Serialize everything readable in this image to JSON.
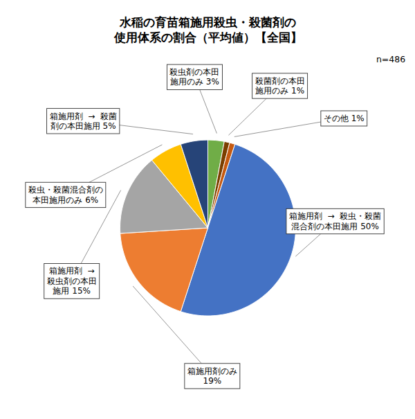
{
  "chart_data": {
    "type": "pie",
    "title": "水稲の育苗箱施用殺虫・殺菌剤の\n使用体系の割合（平均値）【全国】",
    "annotations": [
      "n=486"
    ],
    "categories": [
      "殺虫剤の本田\n施用のみ 3%",
      "殺菌剤の本田\n施用のみ 1%",
      "その他 1%",
      "箱施用剤  →  殺虫・殺菌\n混合剤の本田施用 50%",
      "箱施用剤のみ\n19%",
      "箱施用剤  →\n殺虫剤の本田\n施用 15%",
      "殺虫・殺菌混合剤の\n本田施用のみ 6%",
      "箱施用剤  →  殺菌\n剤の本田施用 5%"
    ],
    "values": [
      3,
      1,
      1,
      50,
      19,
      15,
      6,
      5
    ],
    "colors": [
      "#70AD47",
      "#7B3F00",
      "#C55A11",
      "#4472C4",
      "#ED7D31",
      "#A5A5A5",
      "#FFC000",
      "#264478"
    ]
  }
}
